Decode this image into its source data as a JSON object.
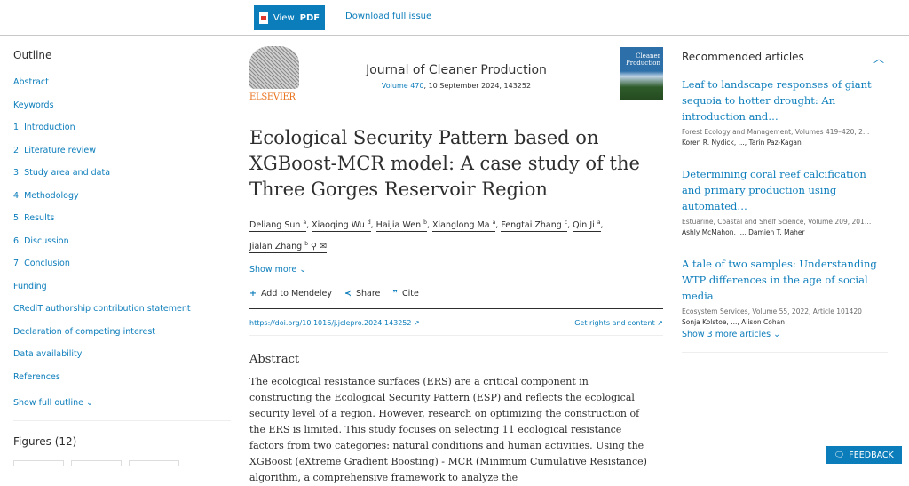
{
  "topbar": {
    "view_pdf_prefix": "View",
    "view_pdf_bold": "PDF",
    "download": "Download full issue"
  },
  "outline": {
    "title": "Outline",
    "items": [
      "Abstract",
      "Keywords",
      "1. Introduction",
      "2. Literature review",
      "3. Study area and data",
      "4. Methodology",
      "5. Results",
      "6. Discussion",
      "7. Conclusion",
      "Funding",
      "CRediT authorship contribution statement",
      "Declaration of competing interest",
      "Data availability",
      "References"
    ],
    "show_full": "Show full outline",
    "figures": "Figures (12)"
  },
  "journal": {
    "publisher": "ELSEVIER",
    "name": "Journal of Cleaner Production",
    "volume_link": "Volume 470",
    "volume_rest": ", 10 September 2024, 143252",
    "cover_text": "Cleaner Production"
  },
  "article": {
    "title": "Ecological Security Pattern based on XGBoost-MCR model: A case study of the Three Gorges Reservoir Region",
    "authors": [
      {
        "name": "Deliang Sun",
        "sup": "a"
      },
      {
        "name": "Xiaoqing Wu",
        "sup": "d"
      },
      {
        "name": "Haijia Wen",
        "sup": "b"
      },
      {
        "name": "Xianglong Ma",
        "sup": "a"
      },
      {
        "name": "Fengtai Zhang",
        "sup": "c"
      },
      {
        "name": "Qin Ji",
        "sup": "a"
      },
      {
        "name": "Jialan Zhang",
        "sup": "b"
      }
    ],
    "show_more": "Show more",
    "actions": {
      "mendeley": "Add to Mendeley",
      "share": "Share",
      "cite": "Cite"
    },
    "doi": "https://doi.org/10.1016/j.jclepro.2024.143252",
    "rights": "Get rights and content",
    "abstract_heading": "Abstract",
    "abstract": "The ecological resistance surfaces (ERS) are a critical component in constructing the Ecological Security Pattern (ESP) and reflects the ecological security level of a region. However, research on optimizing the construction of the ERS is limited. This study focuses on selecting 11 ecological resistance factors from two categories: natural conditions and human activities. Using the XGBoost (eXtreme Gradient Boosting) - MCR (Minimum Cumulative Resistance) algorithm, a comprehensive framework to analyze the"
  },
  "recommended": {
    "title": "Recommended articles",
    "articles": [
      {
        "title": "Leaf to landscape responses of giant sequoia to hotter drought: An introduction and…",
        "source": "Forest Ecology and Management, Volumes 419–420, 2…",
        "authors": "Koren R. Nydick, ..., Tarin Paz-Kagan"
      },
      {
        "title": "Determining coral reef calcification and primary production using automated…",
        "source": "Estuarine, Coastal and Shelf Science, Volume 209, 201…",
        "authors": "Ashly McMahon, ..., Damien T. Maher"
      },
      {
        "title": "A tale of two samples: Understanding WTP differences in the age of social media",
        "source": "Ecosystem Services, Volume 55, 2022, Article 101420",
        "authors": "Sonja Kolstoe, ..., Alison Cohan"
      }
    ],
    "show_more": "Show 3 more articles"
  },
  "feedback": "FEEDBACK",
  "colors": {
    "accent": "#0c7dbb",
    "elsevier": "#e9711c"
  }
}
